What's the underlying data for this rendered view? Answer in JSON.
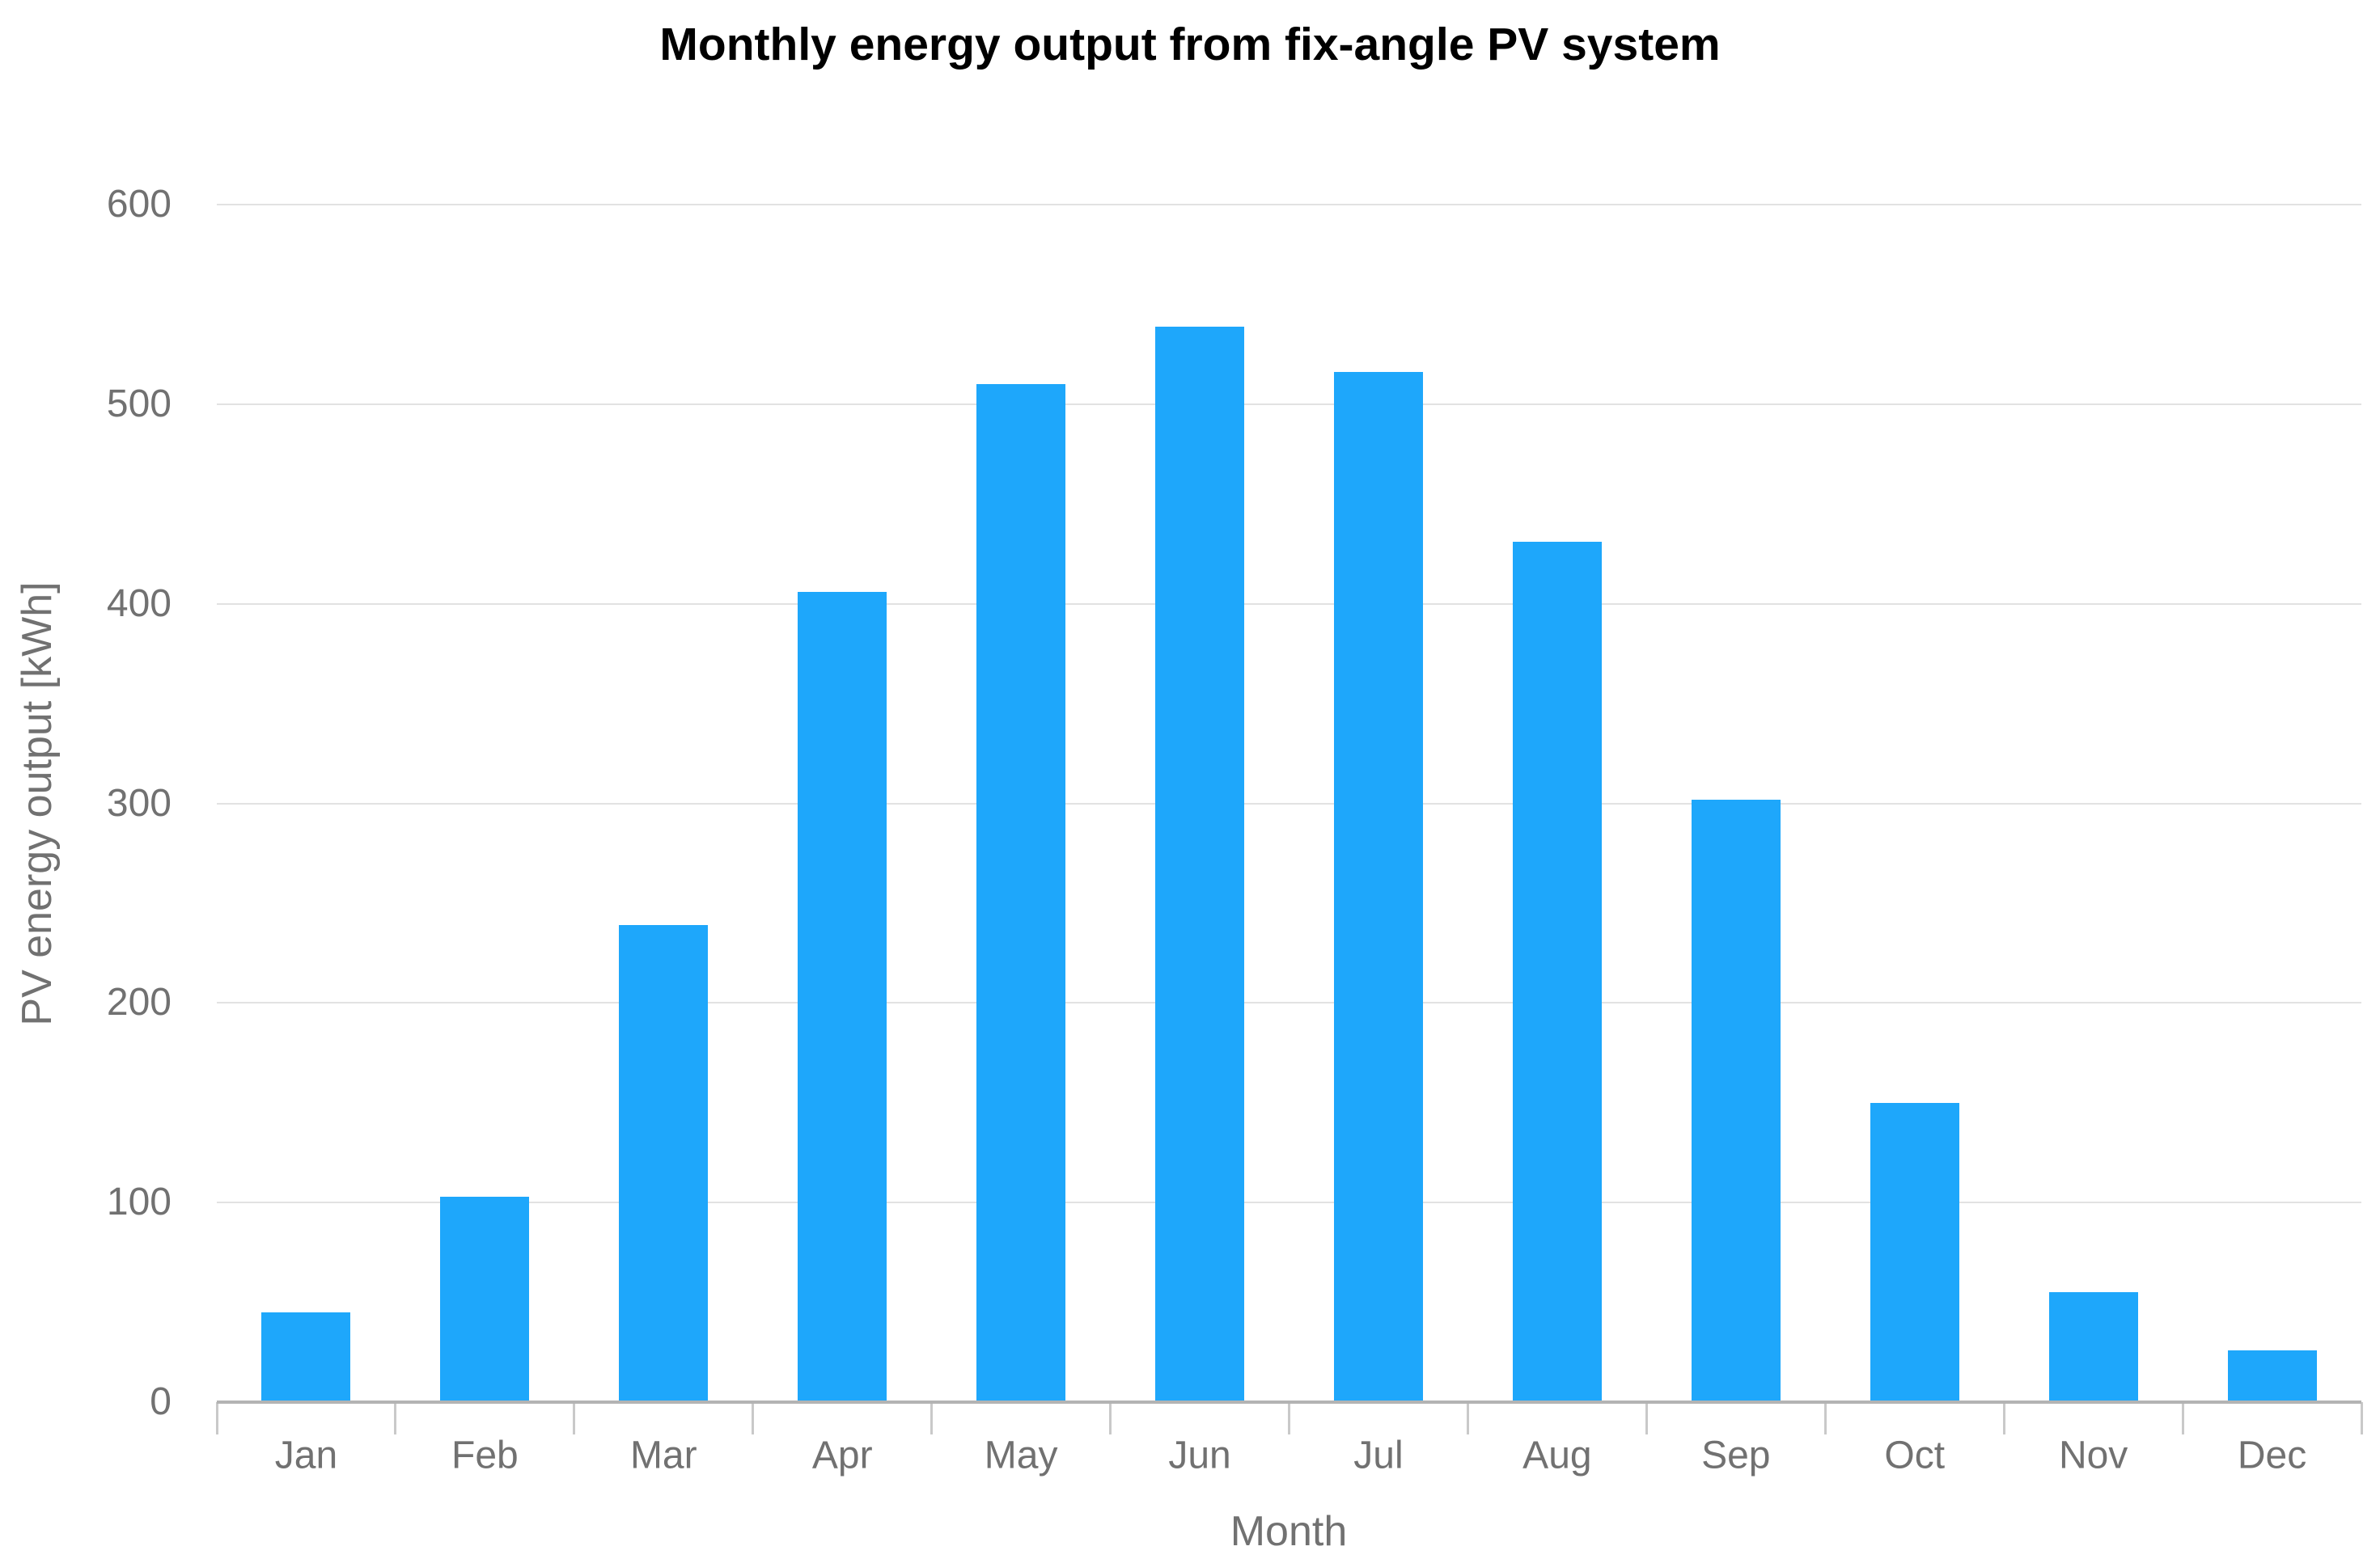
{
  "chart_data": {
    "type": "bar",
    "title": "Monthly energy output from fix-angle PV system",
    "xlabel": "Month",
    "ylabel": "PV energy output [kWh]",
    "categories": [
      "Jan",
      "Feb",
      "Mar",
      "Apr",
      "May",
      "Jun",
      "Jul",
      "Aug",
      "Sep",
      "Oct",
      "Nov",
      "Dec"
    ],
    "values": [
      45,
      103,
      239,
      406,
      510,
      539,
      516,
      431,
      302,
      150,
      55,
      26
    ],
    "ylim": [
      0,
      600
    ],
    "yticks": [
      0,
      100,
      200,
      300,
      400,
      500,
      600
    ],
    "grid": true,
    "legend": false,
    "colors": {
      "bar": "#1ea7fb",
      "gridline": "#e2e2e2",
      "axis_line": "#b3b3b3",
      "tick_mark": "#c9c9c9",
      "tick_label": "#717171",
      "title": "#000000"
    }
  }
}
